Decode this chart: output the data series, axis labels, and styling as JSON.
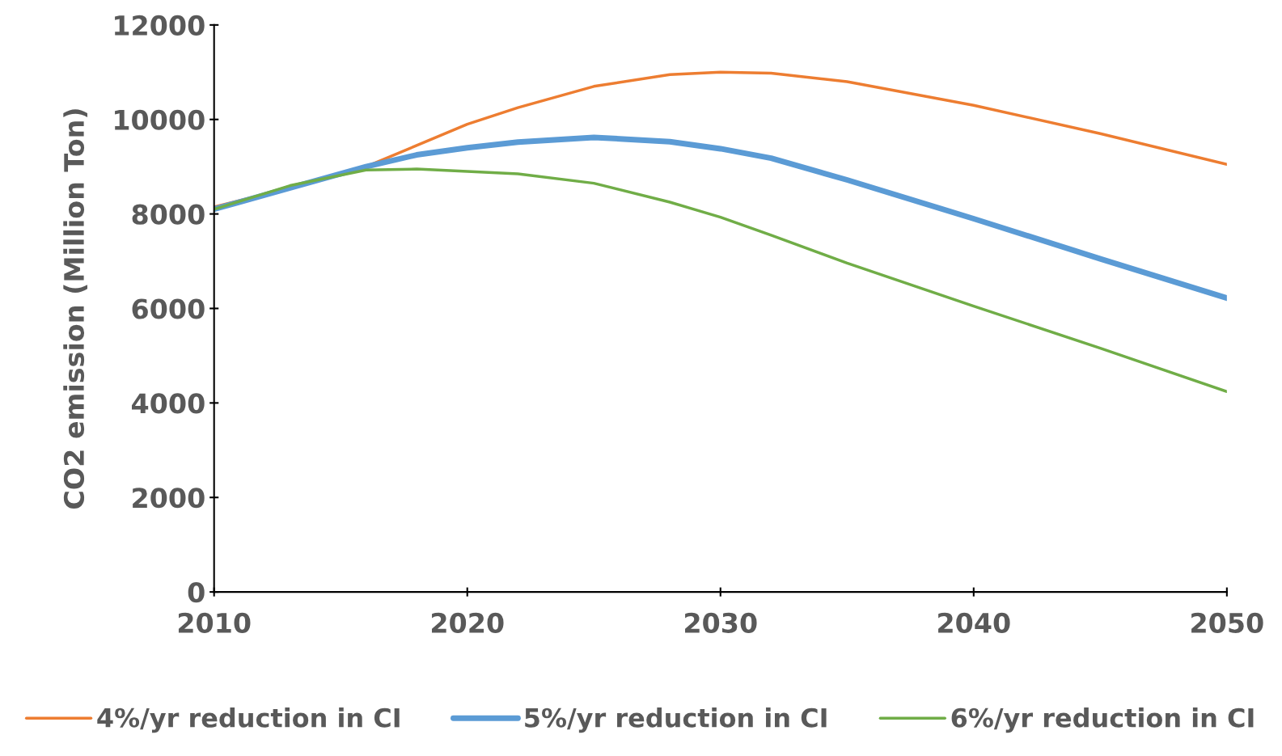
{
  "chart_data": {
    "type": "line",
    "ylabel": "CO2 emission (Million Ton)",
    "x": [
      2010,
      2013,
      2016,
      2018,
      2020,
      2022,
      2025,
      2028,
      2030,
      2032,
      2035,
      2040,
      2045,
      2050
    ],
    "series": [
      {
        "name": "4%/yr reduction in CI",
        "color": "#ed7d31",
        "values": [
          8150,
          8550,
          9000,
          9450,
          9900,
          10250,
          10700,
          10950,
          11000,
          10980,
          10800,
          10300,
          9700,
          9050
        ]
      },
      {
        "name": "5%/yr reduction in CI",
        "color": "#5b9bd5",
        "values": [
          8100,
          8550,
          9000,
          9250,
          9400,
          9520,
          9620,
          9530,
          9380,
          9180,
          8720,
          7900,
          7050,
          6220
        ]
      },
      {
        "name": "6%/yr reduction in CI",
        "color": "#70ad47",
        "values": [
          8100,
          8600,
          8930,
          8950,
          8900,
          8850,
          8650,
          8250,
          7930,
          7550,
          6960,
          6050,
          5160,
          4240
        ]
      }
    ],
    "xlim": [
      2010,
      2050
    ],
    "xticks": [
      2010,
      2020,
      2030,
      2040,
      2050
    ],
    "ylim": [
      0,
      12000
    ],
    "yticks": [
      0,
      2000,
      4000,
      6000,
      8000,
      10000,
      12000
    ],
    "grid": false,
    "legend": "bottom",
    "marker": "none",
    "line_style": "solid"
  }
}
